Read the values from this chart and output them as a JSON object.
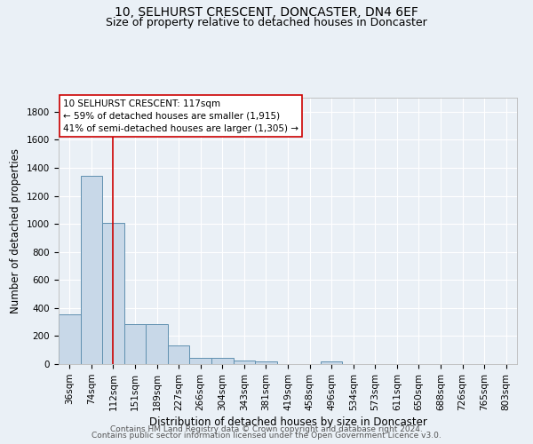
{
  "title": "10, SELHURST CRESCENT, DONCASTER, DN4 6EF",
  "subtitle": "Size of property relative to detached houses in Doncaster",
  "xlabel": "Distribution of detached houses by size in Doncaster",
  "ylabel": "Number of detached properties",
  "categories": [
    "36sqm",
    "74sqm",
    "112sqm",
    "151sqm",
    "189sqm",
    "227sqm",
    "266sqm",
    "304sqm",
    "343sqm",
    "381sqm",
    "419sqm",
    "458sqm",
    "496sqm",
    "534sqm",
    "573sqm",
    "611sqm",
    "650sqm",
    "688sqm",
    "726sqm",
    "765sqm",
    "803sqm"
  ],
  "values": [
    355,
    1340,
    1010,
    285,
    285,
    130,
    42,
    42,
    25,
    20,
    0,
    0,
    20,
    0,
    0,
    0,
    0,
    0,
    0,
    0,
    0
  ],
  "bar_color": "#c8d8e8",
  "bar_edge_color": "#6090b0",
  "vline_x": 2.0,
  "vline_color": "#cc0000",
  "annotation_line1": "10 SELHURST CRESCENT: 117sqm",
  "annotation_line2": "← 59% of detached houses are smaller (1,915)",
  "annotation_line3": "41% of semi-detached houses are larger (1,305) →",
  "ylim": [
    0,
    1900
  ],
  "yticks": [
    0,
    200,
    400,
    600,
    800,
    1000,
    1200,
    1400,
    1600,
    1800
  ],
  "background_color": "#eaf0f6",
  "grid_color": "#ffffff",
  "footer_line1": "Contains HM Land Registry data © Crown copyright and database right 2024.",
  "footer_line2": "Contains public sector information licensed under the Open Government Licence v3.0.",
  "title_fontsize": 10,
  "subtitle_fontsize": 9,
  "axis_label_fontsize": 8.5,
  "tick_fontsize": 7.5,
  "annotation_fontsize": 7.5,
  "footer_fontsize": 6.5
}
